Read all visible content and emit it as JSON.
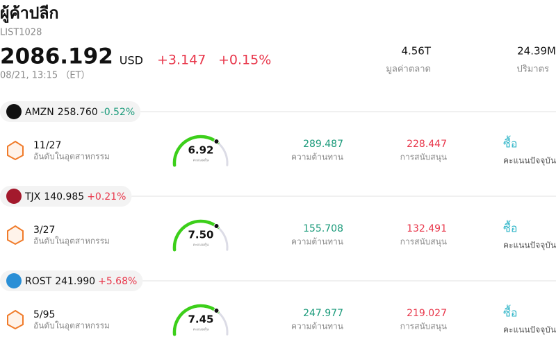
{
  "header": {
    "title": "ผู้ค้าปลีก",
    "code": "LIST1028",
    "price": "2086.192",
    "currency": "USD",
    "change": "+3.147",
    "change_percent": "+0.15%",
    "time": "08/21, 13:15 （ET）",
    "stats": [
      {
        "value": "4.56T",
        "label": "มูลค่าตลาด"
      },
      {
        "value": "24.39M",
        "label": "ปริมาตร"
      }
    ]
  },
  "stocks": [
    {
      "ticker": "AMZN",
      "price": "258.760",
      "change": "-0.52%",
      "rank": "11/27",
      "rank_label": "อันดับในอุตสาหกรรม",
      "score": "6.92",
      "score_label": "คะแนนหุ้น",
      "resistance": "289.487",
      "resistance_label": "ความต้านทาน",
      "support": "228.447",
      "support_label": "การสนับสนุน",
      "action": "ซื้อ",
      "action_label": "คะแนนปัจจุบัน"
    },
    {
      "ticker": "TJX",
      "price": "140.985",
      "change": "+0.21%",
      "rank": "3/27",
      "rank_label": "อันดับในอุตสาหกรรม",
      "score": "7.50",
      "score_label": "คะแนนหุ้น",
      "resistance": "155.708",
      "resistance_label": "ความต้านทาน",
      "support": "132.491",
      "support_label": "การสนับสนุน",
      "action": "ซื้อ",
      "action_label": "คะแนนปัจจุบัน"
    },
    {
      "ticker": "ROST",
      "price": "241.990",
      "change": "+5.68%",
      "rank": "5/95",
      "rank_label": "อันดับในอุตสาหกรรม",
      "score": "7.45",
      "score_label": "คะแนนหุ้น",
      "resistance": "247.977",
      "resistance_label": "ความต้านทาน",
      "support": "219.027",
      "support_label": "การสนับสนุน",
      "action": "ซื้อ",
      "action_label": "คะแนนปัจจุบัน"
    }
  ]
}
